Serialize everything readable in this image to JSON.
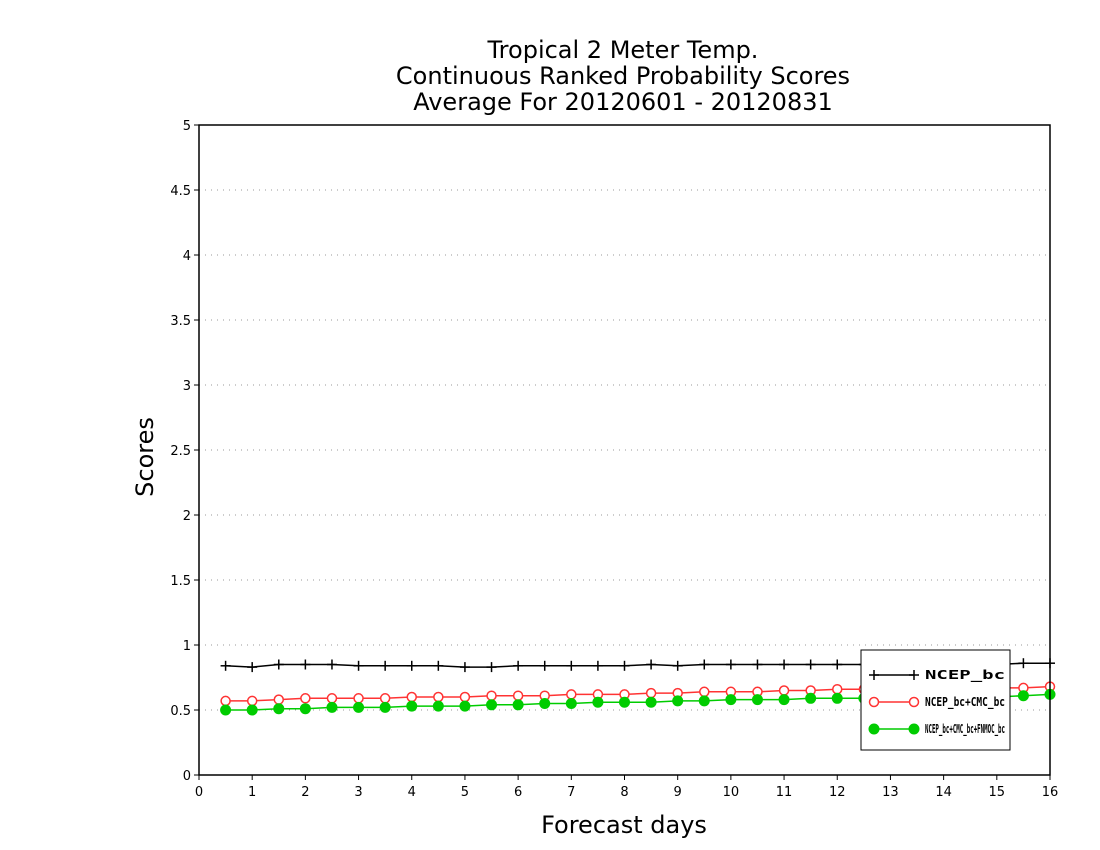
{
  "chart_data": {
    "type": "line",
    "title": [
      "Tropical 2 Meter Temp.",
      "Continuous Ranked Probability Scores",
      "Average For 20120601 - 20120831"
    ],
    "xlabel": "Forecast days",
    "ylabel": "Scores",
    "xlim": [
      0,
      16
    ],
    "ylim": [
      0,
      5
    ],
    "xticks": [
      "0",
      "1",
      "2",
      "3",
      "4",
      "5",
      "6",
      "7",
      "8",
      "9",
      "10",
      "11",
      "12",
      "13",
      "14",
      "15",
      "16"
    ],
    "yticks": [
      "0",
      "0.5",
      "1",
      "1.5",
      "2",
      "2.5",
      "3",
      "3.5",
      "4",
      "4.5",
      "5"
    ],
    "grid": "horizontal dotted",
    "legend_position": "bottom-right",
    "x": [
      0.5,
      1,
      1.5,
      2,
      2.5,
      3,
      3.5,
      4,
      4.5,
      5,
      5.5,
      6,
      6.5,
      7,
      7.5,
      8,
      8.5,
      9,
      9.5,
      10,
      10.5,
      11,
      11.5,
      12,
      12.5,
      13,
      13.5,
      14,
      14.5,
      15,
      15.5,
      16
    ],
    "series": [
      {
        "name": "NCEP_bc",
        "color": "#000000",
        "marker": "plus",
        "values": [
          0.84,
          0.83,
          0.85,
          0.85,
          0.85,
          0.84,
          0.84,
          0.84,
          0.84,
          0.83,
          0.83,
          0.84,
          0.84,
          0.84,
          0.84,
          0.84,
          0.85,
          0.84,
          0.85,
          0.85,
          0.85,
          0.85,
          0.85,
          0.85,
          0.85,
          0.85,
          0.85,
          0.85,
          0.85,
          0.85,
          0.86,
          0.86
        ]
      },
      {
        "name": "NCEP_bc+CMC_bc",
        "color": "#ff3333",
        "marker": "open-circle",
        "values": [
          0.57,
          0.57,
          0.58,
          0.59,
          0.59,
          0.59,
          0.59,
          0.6,
          0.6,
          0.6,
          0.61,
          0.61,
          0.61,
          0.62,
          0.62,
          0.62,
          0.63,
          0.63,
          0.64,
          0.64,
          0.64,
          0.65,
          0.65,
          0.66,
          0.66,
          0.66,
          0.66,
          0.66,
          0.67,
          0.67,
          0.67,
          0.68
        ]
      },
      {
        "name": "NCEP_bc+CMC_bc+FNMOC_bc",
        "color": "#00cc00",
        "marker": "filled-circle",
        "values": [
          0.5,
          0.5,
          0.51,
          0.51,
          0.52,
          0.52,
          0.52,
          0.53,
          0.53,
          0.53,
          0.54,
          0.54,
          0.55,
          0.55,
          0.56,
          0.56,
          0.56,
          0.57,
          0.57,
          0.58,
          0.58,
          0.58,
          0.59,
          0.59,
          0.59,
          0.59,
          0.6,
          0.6,
          0.6,
          0.6,
          0.61,
          0.62
        ]
      }
    ]
  }
}
